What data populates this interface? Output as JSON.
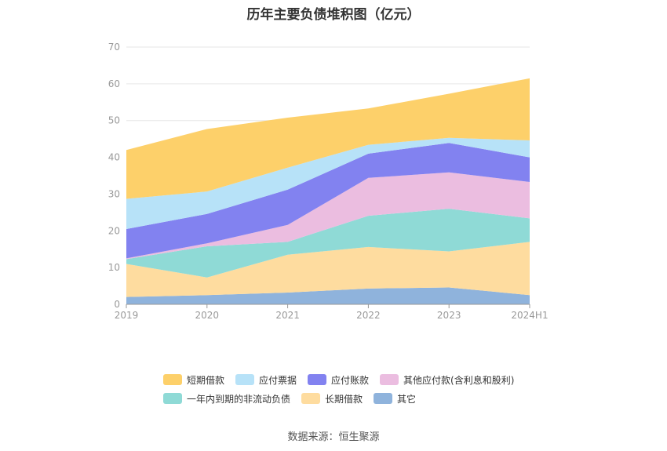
{
  "chart_data": {
    "type": "area",
    "stacked": true,
    "title": "历年主要负债堆积图（亿元）",
    "categories": [
      "2019",
      "2020",
      "2021",
      "2022",
      "2023",
      "2024H1"
    ],
    "ylim": [
      0,
      70
    ],
    "yticks": [
      0,
      10,
      20,
      30,
      40,
      50,
      60,
      70
    ],
    "grid": true,
    "legend_position": "bottom",
    "series": [
      {
        "name": "其它",
        "color": "#8fb3dc",
        "values": [
          2.0,
          2.5,
          3.2,
          4.3,
          4.6,
          2.5
        ]
      },
      {
        "name": "长期借款",
        "color": "#fedc9f",
        "values": [
          9.0,
          4.8,
          10.3,
          11.3,
          9.8,
          14.5
        ]
      },
      {
        "name": "一年内到期的非流动负债",
        "color": "#8fdad6",
        "values": [
          1.3,
          8.5,
          3.5,
          8.5,
          11.6,
          6.4
        ]
      },
      {
        "name": "其他应付款(含利息和股利)",
        "color": "#ebbde0",
        "values": [
          0.2,
          0.8,
          4.6,
          10.3,
          9.9,
          9.9
        ]
      },
      {
        "name": "应付账款",
        "color": "#8282f0",
        "values": [
          8.0,
          8.0,
          9.6,
          6.6,
          8.0,
          6.7
        ]
      },
      {
        "name": "应付票据",
        "color": "#b7e2f8",
        "values": [
          8.2,
          6.1,
          6.0,
          2.4,
          1.4,
          4.6
        ]
      },
      {
        "name": "短期借款",
        "color": "#fdd06a",
        "values": [
          13.3,
          17.0,
          13.6,
          9.9,
          12.0,
          16.9
        ]
      }
    ]
  },
  "legend": {
    "row1": [
      "短期借款",
      "应付票据",
      "应付账款",
      "其他应付款(含利息和股利)"
    ],
    "row2": [
      "一年内到期的非流动负债",
      "长期借款",
      "其它"
    ]
  },
  "source": "数据来源：恒生聚源"
}
